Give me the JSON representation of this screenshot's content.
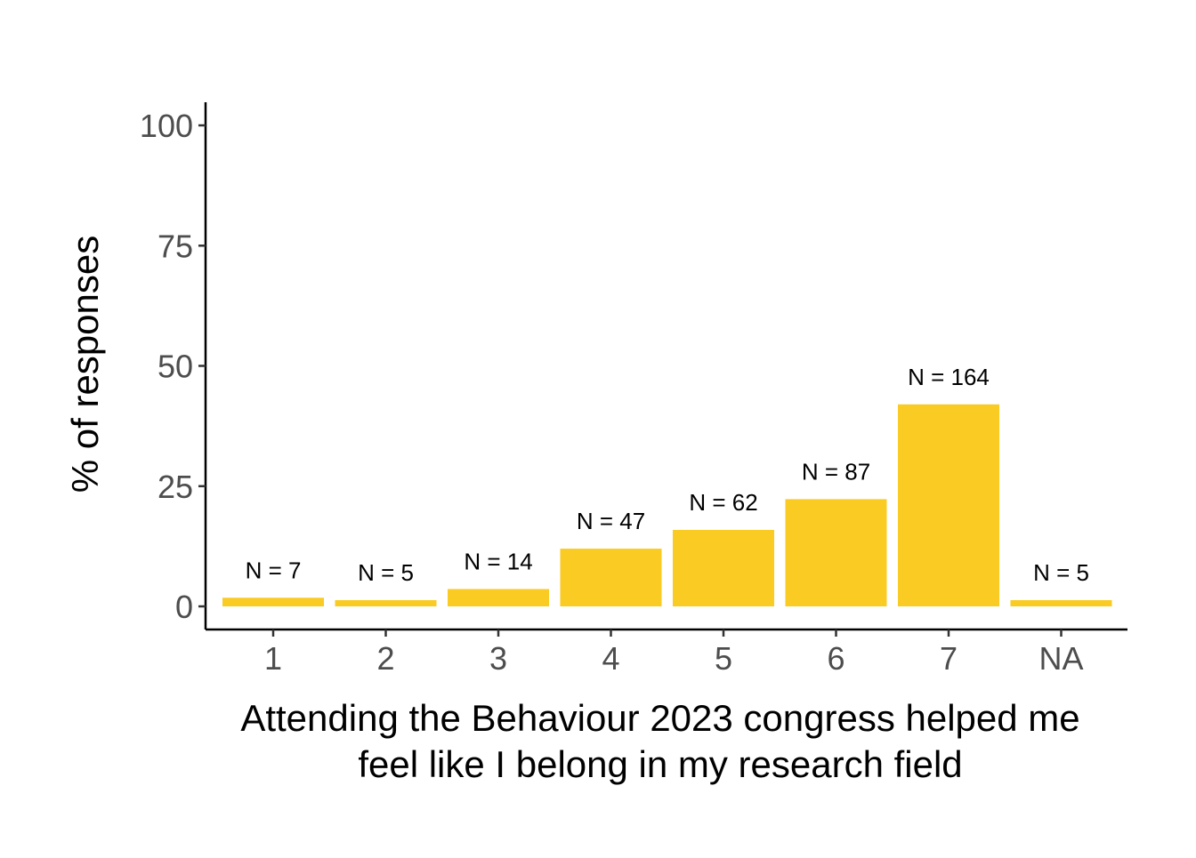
{
  "chart_data": {
    "type": "bar",
    "categories": [
      "1",
      "2",
      "3",
      "4",
      "5",
      "6",
      "7",
      "NA"
    ],
    "values": [
      1.8,
      1.3,
      3.6,
      12.0,
      15.9,
      22.3,
      42.0,
      1.3
    ],
    "bar_labels": [
      "N = 7",
      "N = 5",
      "N = 14",
      "N = 47",
      "N = 62",
      "N = 87",
      "N = 164",
      "N = 5"
    ],
    "xlabel_lines": [
      "Attending the Behaviour 2023 congress helped me",
      "feel like I belong in my research field"
    ],
    "ylabel": "% of responses",
    "ylim": [
      0,
      100
    ],
    "yticks": [
      0,
      25,
      50,
      75,
      100
    ],
    "ytick_labels": [
      "0",
      "25",
      "50",
      "75",
      "100"
    ],
    "bar_color": "#F9CB23",
    "grid": false
  }
}
